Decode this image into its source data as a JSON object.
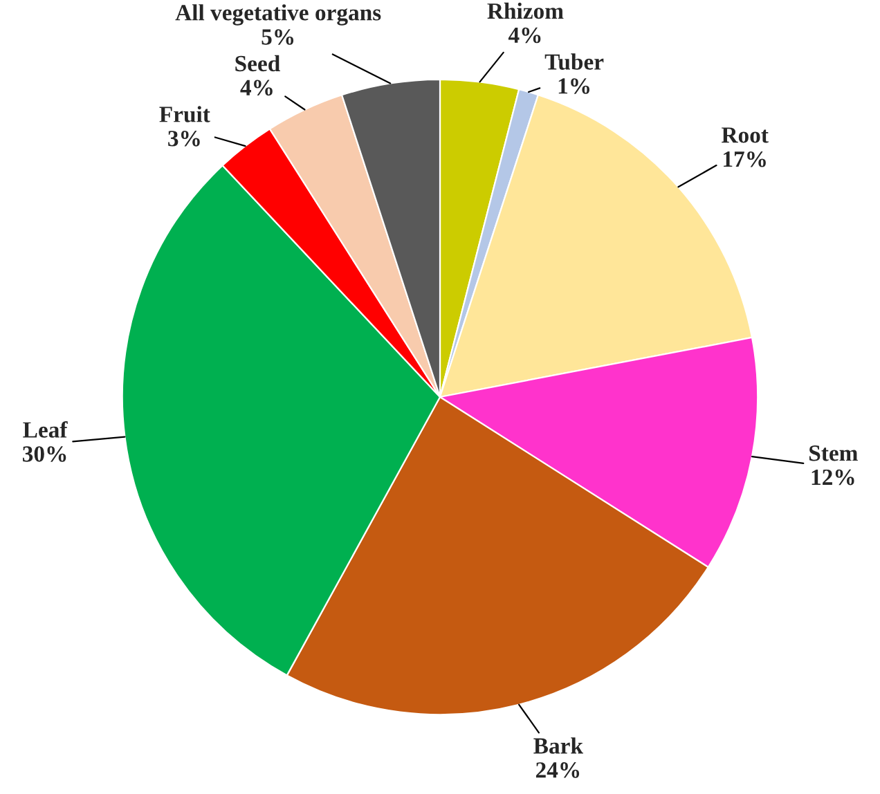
{
  "chart_data": {
    "type": "pie",
    "categories": [
      "Rhizom",
      "Tuber",
      "Root",
      "Stem",
      "Bark",
      "Leaf",
      "Fruit",
      "Seed",
      "All vegetative organs"
    ],
    "values": [
      4,
      1,
      17,
      12,
      24,
      30,
      3,
      4,
      5
    ],
    "colors": [
      "#cccc00",
      "#b4c7e7",
      "#ffe699",
      "#ff33cc",
      "#c55a11",
      "#00b050",
      "#ff0000",
      "#f8cbad",
      "#595959"
    ],
    "value_labels": [
      "4%",
      "1%",
      "17%",
      "12%",
      "24%",
      "30%",
      "3%",
      "4%",
      "5%"
    ],
    "legend": false
  }
}
